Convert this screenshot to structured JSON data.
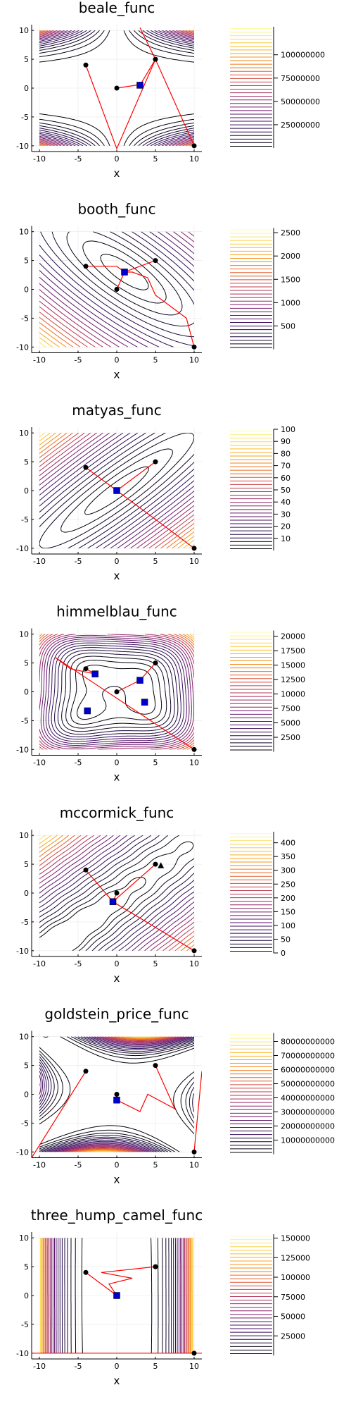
{
  "chart_data": [
    {
      "type": "contour",
      "title": "beale_func",
      "xlabel": "x",
      "ylabel": "",
      "xlim": [
        -11,
        11
      ],
      "ylim": [
        -11,
        11
      ],
      "xticks": [
        -10,
        -5,
        0,
        5,
        10
      ],
      "yticks": [
        -10,
        -5,
        0,
        5,
        10
      ],
      "grid": true,
      "colorbar": {
        "min": 0,
        "max": 130000000,
        "ticks": [
          100000000,
          75000000,
          50000000,
          25000000
        ]
      },
      "start_points": [
        [
          -4,
          4
        ],
        [
          0,
          0
        ],
        [
          5,
          5
        ],
        [
          10,
          -10
        ]
      ],
      "end_points": [
        [
          3,
          0.5
        ]
      ],
      "end_triangles": [],
      "paths": [
        [
          [
            -4,
            4
          ],
          [
            0,
            -10.5
          ]
        ],
        [
          [
            0,
            -10.5
          ],
          [
            5,
            5
          ]
        ],
        [
          [
            0,
            0
          ],
          [
            2.5,
            0.5
          ],
          [
            3,
            0.5
          ]
        ],
        [
          [
            3,
            0.5
          ],
          [
            5,
            5
          ]
        ],
        [
          [
            3,
            10.5
          ],
          [
            5,
            5
          ],
          [
            10,
            -10
          ]
        ]
      ]
    },
    {
      "type": "contour",
      "title": "booth_func",
      "xlabel": "x",
      "ylabel": "",
      "xlim": [
        -11,
        11
      ],
      "ylim": [
        -11,
        11
      ],
      "xticks": [
        -10,
        -5,
        0,
        5,
        10
      ],
      "yticks": [
        -10,
        -5,
        0,
        5,
        10
      ],
      "grid": true,
      "colorbar": {
        "min": 0,
        "max": 2600,
        "ticks": [
          2500,
          2000,
          1500,
          1000,
          500
        ]
      },
      "start_points": [
        [
          -4,
          4
        ],
        [
          0,
          0
        ],
        [
          5,
          5
        ],
        [
          10,
          -10
        ]
      ],
      "end_points": [
        [
          1,
          3
        ]
      ],
      "end_triangles": [],
      "paths": [
        [
          [
            -4,
            4
          ],
          [
            0,
            4
          ],
          [
            1,
            3
          ]
        ],
        [
          [
            0,
            0
          ],
          [
            1,
            3
          ]
        ],
        [
          [
            5,
            5
          ],
          [
            1,
            3
          ]
        ],
        [
          [
            10,
            -10
          ],
          [
            9,
            -5
          ],
          [
            7,
            -3
          ],
          [
            5,
            -1
          ],
          [
            4,
            2
          ],
          [
            2,
            3
          ],
          [
            1,
            3
          ]
        ]
      ]
    },
    {
      "type": "contour",
      "title": "matyas_func",
      "xlabel": "x",
      "ylabel": "",
      "xlim": [
        -11,
        11
      ],
      "ylim": [
        -11,
        11
      ],
      "xticks": [
        -10,
        -5,
        0,
        5,
        10
      ],
      "yticks": [
        -10,
        -5,
        0,
        5,
        10
      ],
      "grid": true,
      "colorbar": {
        "min": 0,
        "max": 100,
        "ticks": [
          100,
          90,
          80,
          70,
          60,
          50,
          40,
          30,
          20,
          10
        ]
      },
      "start_points": [
        [
          -4,
          4
        ],
        [
          0,
          0
        ],
        [
          5,
          5
        ],
        [
          10,
          -10
        ]
      ],
      "end_points": [
        [
          0,
          0
        ]
      ],
      "end_triangles": [],
      "paths": [
        [
          [
            -4,
            4
          ],
          [
            0,
            0
          ]
        ],
        [
          [
            5,
            5
          ],
          [
            0,
            0
          ]
        ],
        [
          [
            10,
            -10
          ],
          [
            0,
            0
          ]
        ]
      ]
    },
    {
      "type": "contour",
      "title": "himmelblau_func",
      "xlabel": "x",
      "ylabel": "",
      "xlim": [
        -11,
        11
      ],
      "ylim": [
        -11,
        11
      ],
      "xticks": [
        -10,
        -5,
        0,
        5,
        10
      ],
      "yticks": [
        -10,
        -5,
        0,
        5,
        10
      ],
      "grid": true,
      "colorbar": {
        "min": 0,
        "max": 21000,
        "ticks": [
          20000,
          17500,
          15000,
          12500,
          10000,
          7500,
          5000,
          2500
        ]
      },
      "start_points": [
        [
          -4,
          4
        ],
        [
          0,
          0
        ],
        [
          5,
          5
        ],
        [
          10,
          -10
        ]
      ],
      "end_points": [
        [
          -2.8,
          3.1
        ],
        [
          3,
          2
        ],
        [
          -3.8,
          -3.3
        ],
        [
          3.6,
          -1.8
        ]
      ],
      "end_triangles": [],
      "paths": [
        [
          [
            -4,
            4
          ],
          [
            -2.8,
            3.1
          ]
        ],
        [
          [
            0,
            0
          ],
          [
            3,
            2
          ]
        ],
        [
          [
            5,
            5
          ],
          [
            3,
            2
          ]
        ],
        [
          [
            10,
            -10
          ],
          [
            -8,
            6
          ],
          [
            -6,
            4
          ],
          [
            -2.8,
            3.1
          ]
        ]
      ]
    },
    {
      "type": "contour",
      "title": "mccormick_func",
      "xlabel": "x",
      "ylabel": "",
      "xlim": [
        -11,
        11
      ],
      "ylim": [
        -11,
        11
      ],
      "xticks": [
        -10,
        -5,
        0,
        5,
        10
      ],
      "yticks": [
        -10,
        -5,
        0,
        5,
        10
      ],
      "grid": true,
      "colorbar": {
        "min": 0,
        "max": 440,
        "ticks": [
          400,
          350,
          300,
          250,
          200,
          150,
          100,
          50,
          0
        ]
      },
      "start_points": [
        [
          -4,
          4
        ],
        [
          0,
          0
        ],
        [
          5,
          5
        ],
        [
          10,
          -10
        ]
      ],
      "end_points": [
        [
          -0.5,
          -1.5
        ]
      ],
      "end_triangles": [
        [
          5.7,
          4.8
        ]
      ],
      "paths": [
        [
          [
            -4,
            4
          ],
          [
            -0.5,
            -1.5
          ]
        ],
        [
          [
            0,
            0
          ],
          [
            -0.5,
            -1.5
          ]
        ],
        [
          [
            5,
            5
          ],
          [
            -0.5,
            -1.5
          ]
        ],
        [
          [
            10,
            -10
          ],
          [
            -0.5,
            -1.5
          ]
        ]
      ]
    },
    {
      "type": "contour",
      "title": "goldstein_price_func",
      "xlabel": "x",
      "ylabel": "",
      "xlim": [
        -11,
        11
      ],
      "ylim": [
        -11,
        11
      ],
      "xticks": [
        -10,
        -5,
        0,
        5,
        10
      ],
      "yticks": [
        -10,
        -5,
        0,
        5,
        10
      ],
      "grid": true,
      "colorbar": {
        "min": 0,
        "max": 86000000000,
        "ticks": [
          80000000000,
          70000000000,
          60000000000,
          50000000000,
          40000000000,
          30000000000,
          20000000000,
          10000000000
        ]
      },
      "start_points": [
        [
          -4,
          4
        ],
        [
          0,
          0
        ],
        [
          5,
          5
        ],
        [
          10,
          -10
        ]
      ],
      "end_points": [
        [
          0,
          -1
        ]
      ],
      "end_triangles": [],
      "paths": [
        [
          [
            -4,
            4
          ],
          [
            -11,
            -11
          ]
        ],
        [
          [
            0,
            0
          ],
          [
            0,
            -1
          ]
        ],
        [
          [
            5,
            5
          ],
          [
            7.5,
            -2.5
          ],
          [
            4,
            0
          ],
          [
            3,
            -3
          ],
          [
            0,
            -1
          ]
        ],
        [
          [
            10,
            -10
          ],
          [
            11,
            4
          ]
        ]
      ]
    },
    {
      "type": "contour",
      "title": "three_hump_camel_func",
      "xlabel": "x",
      "ylabel": "",
      "xlim": [
        -11,
        11
      ],
      "ylim": [
        -11,
        11
      ],
      "xticks": [
        -10,
        -5,
        0,
        5,
        10
      ],
      "yticks": [
        -10,
        -5,
        0,
        5,
        10
      ],
      "grid": true,
      "colorbar": {
        "min": 0,
        "max": 155000,
        "ticks": [
          150000,
          125000,
          100000,
          75000,
          50000,
          25000
        ]
      },
      "start_points": [
        [
          -4,
          4
        ],
        [
          0,
          0
        ],
        [
          5,
          5
        ],
        [
          10,
          -10
        ]
      ],
      "end_points": [
        [
          0,
          0
        ]
      ],
      "end_triangles": [],
      "paths": [
        [
          [
            -4,
            4
          ],
          [
            0,
            0
          ]
        ],
        [
          [
            5,
            5
          ],
          [
            -2,
            4
          ],
          [
            2,
            3
          ],
          [
            -1,
            2
          ],
          [
            0,
            0
          ]
        ],
        [
          [
            -11,
            -10
          ],
          [
            11,
            -10
          ]
        ]
      ]
    }
  ]
}
